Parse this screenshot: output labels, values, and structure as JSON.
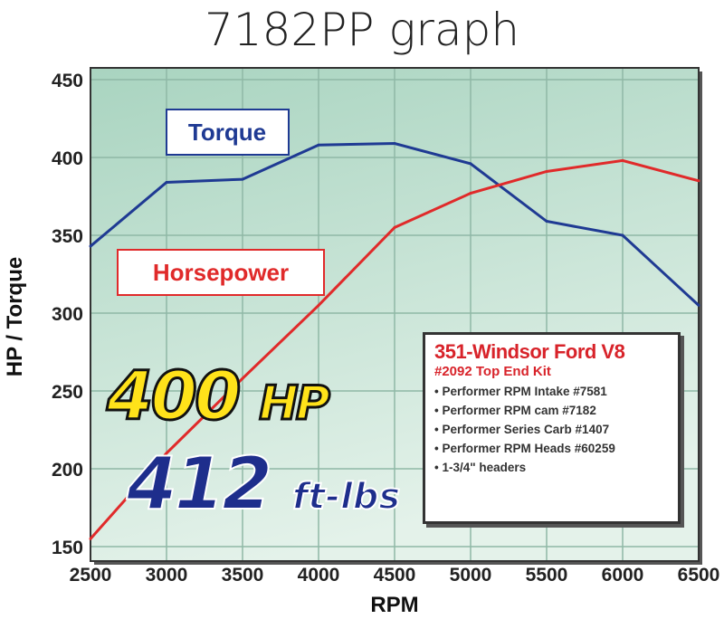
{
  "title": "7182PP graph",
  "chart_data": {
    "type": "line",
    "title": "7182PP graph",
    "xlabel": "RPM",
    "ylabel": "HP / Torque",
    "x": [
      2500,
      3000,
      3500,
      4000,
      4500,
      5000,
      5500,
      6000,
      6500
    ],
    "xticks": [
      "2500",
      "3000",
      "3500",
      "4000",
      "4500",
      "5000",
      "5500",
      "6000",
      "6500"
    ],
    "yticks": [
      "150",
      "200",
      "250",
      "300",
      "350",
      "400",
      "450"
    ],
    "xlim": [
      2500,
      6500
    ],
    "ylim": [
      150,
      450
    ],
    "grid": true,
    "series": [
      {
        "name": "Torque",
        "color": "#1f3a93",
        "values": [
          343,
          384,
          386,
          408,
          409,
          396,
          359,
          350,
          305
        ]
      },
      {
        "name": "Horsepower",
        "color": "#e02a2a",
        "values": [
          155,
          210,
          258,
          305,
          355,
          377,
          391,
          398,
          385
        ]
      }
    ]
  },
  "callouts": {
    "hp_value": "400",
    "hp_unit": "HP",
    "torque_value": "412",
    "torque_unit": "ft-lbs"
  },
  "info_box": {
    "title": "351-Windsor Ford V8",
    "subtitle": "#2092 Top End Kit",
    "items": [
      "Performer RPM Intake #7581",
      "Performer RPM cam #7182",
      "Performer Series Carb #1407",
      "Performer RPM Heads #60259",
      "1-3/4\" headers"
    ]
  }
}
